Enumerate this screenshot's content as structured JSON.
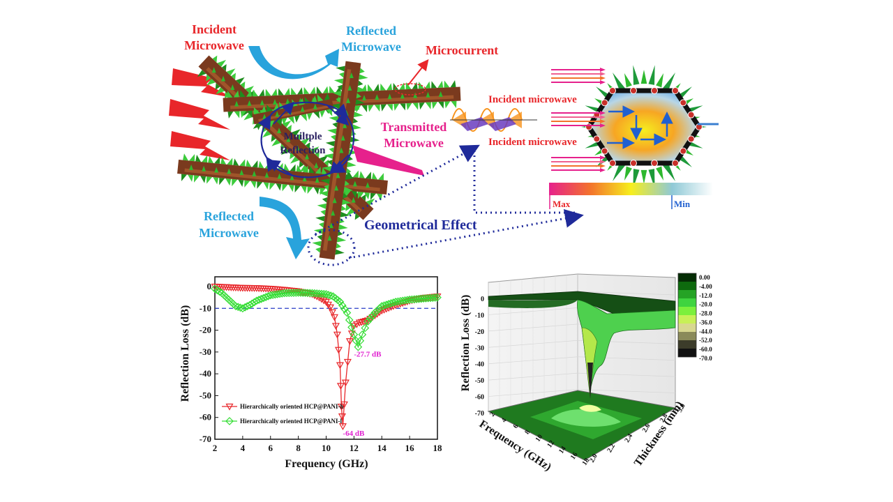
{
  "schematic": {
    "incident_label": [
      "Incident",
      "Microwave"
    ],
    "reflected_top_label": [
      "Reflected",
      "Microwave"
    ],
    "reflected_bottom_label": [
      "Reflected",
      "Microwave"
    ],
    "microcurrent_label": "Microcurrent",
    "transmitted_label": [
      "Transmitted",
      "Microwave"
    ],
    "multiple_reflection_label": [
      "Muiltple",
      "Reflection"
    ],
    "geometrical_effect_label": "Geometrical Effect",
    "incident_upper_label": "Incident microwave",
    "incident_lower_label": "Incident microwave",
    "colorbar_max_label": "Max",
    "colorbar_min_label": "Min",
    "colors": {
      "red": "#e8262a",
      "cyan": "#29a3dc",
      "magenta": "#e6218c",
      "navy": "#1f2a9a",
      "rod_body": "#7a3a1e",
      "spike_green": "#2eb82e"
    }
  },
  "chart_data": [
    {
      "type": "line",
      "xlabel": "Frequency (GHz)",
      "ylabel": "Reflection Loss (dB)",
      "xlim": [
        2,
        18
      ],
      "ylim": [
        -70,
        0
      ],
      "xticks": [
        2,
        4,
        6,
        8,
        10,
        12,
        14,
        16,
        18
      ],
      "yticks": [
        0,
        -10,
        -20,
        -30,
        -40,
        -50,
        -60,
        -70
      ],
      "reference_line": -10,
      "legend_position": "bottom-left",
      "series": [
        {
          "name": "Hierarchically oriented HCP@PANI-h",
          "color": "#e8262a",
          "marker": "triangle-down",
          "x": [
            2,
            3,
            4,
            5,
            6,
            7,
            8,
            9,
            9.5,
            10,
            10.3,
            10.6,
            10.8,
            11,
            11.1,
            11.2,
            11.4,
            11.7,
            12,
            12.4,
            13,
            14,
            15,
            16,
            17,
            18
          ],
          "y": [
            0,
            -0.3,
            -0.6,
            -0.7,
            -1.0,
            -1.5,
            -2.2,
            -3.5,
            -5,
            -7,
            -9.5,
            -14,
            -22,
            -36,
            -55,
            -64,
            -44,
            -25,
            -18,
            -16.5,
            -15.5,
            -11,
            -8.5,
            -6.5,
            -5.2,
            -4.5
          ]
        },
        {
          "name": "Hierarchically oriented HCP@PANI-l",
          "color": "#33dd33",
          "marker": "diamond",
          "x": [
            2,
            2.5,
            3,
            3.5,
            4,
            4.5,
            5,
            6,
            7,
            8,
            9,
            10,
            10.5,
            11,
            11.5,
            12,
            12.3,
            12.6,
            13,
            13.5,
            14,
            15,
            16,
            17,
            18
          ],
          "y": [
            -1,
            -3,
            -6,
            -9,
            -10,
            -8.5,
            -6.5,
            -4,
            -3,
            -2.8,
            -3,
            -3.5,
            -4.5,
            -7,
            -12,
            -22,
            -27.7,
            -22,
            -16,
            -12,
            -9,
            -7,
            -6,
            -5.5,
            -5
          ]
        }
      ],
      "annotations": [
        {
          "text": "-27.7 dB",
          "x": 12.3,
          "y": -27.7
        },
        {
          "text": "-64 dB",
          "x": 11.2,
          "y": -64
        }
      ]
    },
    {
      "type": "surface",
      "xlabel": "Frequency (GHz)",
      "ylabel": "Thickness (mm)",
      "zlabel": "Reflection Loss (dB)",
      "xticks": [
        2,
        4,
        6,
        8,
        10,
        12,
        14,
        16,
        18
      ],
      "yticks": [
        2.0,
        2.2,
        2.4,
        2.6,
        2.8,
        3.0
      ],
      "zticks": [
        0,
        -10,
        -20,
        -30,
        -40,
        -50,
        -60,
        -70
      ],
      "minimum": {
        "frequency": 11.2,
        "thickness": 2.6,
        "value": -64
      },
      "colorbar_labels": [
        "0.00",
        "-4.00",
        "-12.0",
        "-20.0",
        "-28.0",
        "-36.0",
        "-44.0",
        "-52.0",
        "-60.0",
        "-70.0"
      ],
      "colorbar_colors": [
        "#052d05",
        "#0e6a0e",
        "#25a325",
        "#3fd43f",
        "#7cf03c",
        "#c8f058",
        "#d8d890",
        "#8a8a5a",
        "#3c3c2a",
        "#111111"
      ]
    }
  ]
}
